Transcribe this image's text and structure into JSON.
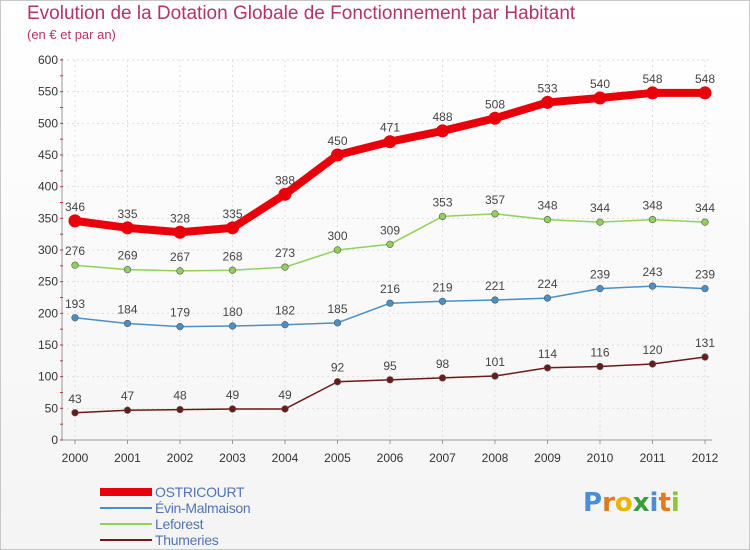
{
  "header": {
    "title": "Evolution de la Dotation Globale de Fonctionnement par Habitant",
    "subtitle": "(en € et par an)"
  },
  "chart_data": {
    "type": "line",
    "title": "Evolution de la Dotation Globale de Fonctionnement par Habitant",
    "subtitle": "(en € et par an)",
    "xlabel": "",
    "ylabel": "",
    "ylim": [
      0,
      600
    ],
    "yticks": [
      0,
      50,
      100,
      150,
      200,
      250,
      300,
      350,
      400,
      450,
      500,
      550,
      600
    ],
    "grid": true,
    "legend_position": "bottom-left",
    "categories": [
      "2000",
      "2001",
      "2002",
      "2003",
      "2004",
      "2005",
      "2006",
      "2007",
      "2008",
      "2009",
      "2010",
      "2011",
      "2012"
    ],
    "series": [
      {
        "name": "OSTRICOURT",
        "color": "#e8000b",
        "values": [
          346,
          335,
          328,
          335,
          388,
          450,
          471,
          488,
          508,
          533,
          540,
          548,
          548
        ]
      },
      {
        "name": "Évin-Malmaison",
        "color": "#4a90c8",
        "values": [
          193,
          184,
          179,
          180,
          182,
          185,
          216,
          219,
          221,
          224,
          239,
          243,
          239
        ]
      },
      {
        "name": "Leforest",
        "color": "#8fd15c",
        "values": [
          276,
          269,
          267,
          268,
          273,
          300,
          309,
          353,
          357,
          348,
          344,
          348,
          344
        ]
      },
      {
        "name": "Thumeries",
        "color": "#6b1a1a",
        "values": [
          43,
          47,
          48,
          49,
          49,
          92,
          95,
          98,
          101,
          114,
          116,
          120,
          131
        ]
      }
    ]
  },
  "logo": {
    "letters": [
      "P",
      "r",
      "o",
      "x",
      "i",
      "t",
      "i"
    ],
    "colors": [
      "#4a8fd6",
      "#e07a1a",
      "#e8b400",
      "#3a9e3a",
      "#4a8fd6",
      "#e07a1a",
      "#8fc43a"
    ]
  }
}
